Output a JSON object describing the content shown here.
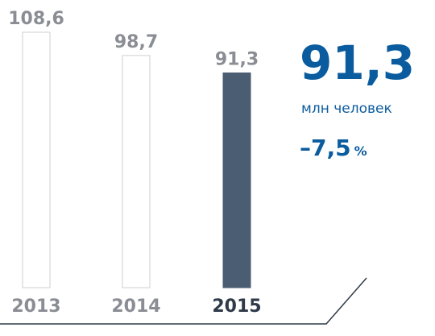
{
  "chart_data": {
    "type": "bar",
    "categories": [
      "2013",
      "2014",
      "2015"
    ],
    "values": [
      108.6,
      98.7,
      91.3
    ],
    "value_labels": [
      "108,6",
      "98,7",
      "91,3"
    ],
    "colors": [
      "#ffffff",
      "#ffffff",
      "#4b5d73"
    ],
    "edge_color": "#cfcfcf",
    "annotations": {
      "headline": "91,3",
      "unit": "млн человек",
      "change": "–7,5",
      "change_unit": "%"
    }
  }
}
